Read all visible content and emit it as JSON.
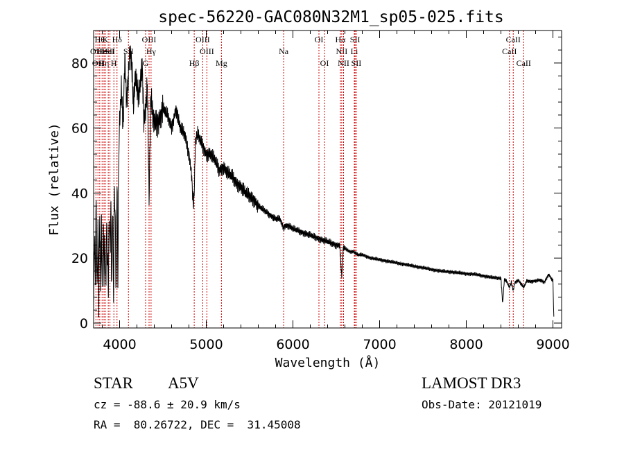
{
  "chart_data": {
    "type": "line",
    "title": "spec-56220-GAC080N32M1_sp05-025.fits",
    "xlabel": "Wavelength (Å)",
    "ylabel": "Flux (relative)",
    "xlim": [
      3700,
      9100
    ],
    "ylim": [
      -1.5,
      90
    ],
    "xticks": [
      4000,
      5000,
      6000,
      7000,
      8000,
      9000
    ],
    "yticks": [
      0,
      20,
      40,
      60,
      80
    ],
    "series": [
      {
        "name": "flux",
        "x": [
          3700,
          3710,
          3720,
          3730,
          3740,
          3750,
          3760,
          3770,
          3780,
          3790,
          3800,
          3810,
          3820,
          3830,
          3840,
          3850,
          3860,
          3870,
          3880,
          3890,
          3900,
          3910,
          3920,
          3930,
          3940,
          3950,
          3960,
          3970,
          3980,
          3990,
          4000,
          4020,
          4040,
          4060,
          4080,
          4100,
          4120,
          4140,
          4160,
          4180,
          4200,
          4220,
          4240,
          4260,
          4280,
          4300,
          4320,
          4340,
          4360,
          4380,
          4400,
          4450,
          4500,
          4550,
          4600,
          4650,
          4700,
          4750,
          4800,
          4830,
          4850,
          4861,
          4875,
          4900,
          4950,
          5000,
          5050,
          5100,
          5150,
          5200,
          5250,
          5300,
          5350,
          5400,
          5450,
          5500,
          5550,
          5600,
          5650,
          5700,
          5750,
          5800,
          5850,
          5893,
          5900,
          5950,
          6000,
          6100,
          6200,
          6300,
          6400,
          6500,
          6540,
          6563,
          6580,
          6600,
          6650,
          6700,
          6750,
          6800,
          6900,
          7000,
          7100,
          7200,
          7300,
          7400,
          7500,
          7600,
          7700,
          7800,
          7900,
          8000,
          8100,
          8200,
          8300,
          8400,
          8420,
          8440,
          8460,
          8498,
          8520,
          8542,
          8560,
          8600,
          8662,
          8700,
          8750,
          8800,
          8850,
          8900,
          8950,
          9000,
          9010
        ],
        "y": [
          2,
          28,
          12,
          38,
          8,
          30,
          6,
          34,
          12,
          28,
          10,
          32,
          14,
          26,
          10,
          30,
          20,
          12,
          34,
          22,
          36,
          10,
          38,
          8,
          42,
          30,
          8,
          46,
          12,
          52,
          62,
          72,
          60,
          82,
          68,
          76,
          84,
          80,
          66,
          76,
          72,
          70,
          74,
          80,
          62,
          66,
          74,
          38,
          70,
          64,
          62,
          62,
          66,
          64,
          60,
          66,
          60,
          58,
          52,
          46,
          36,
          40,
          56,
          58,
          55,
          52,
          52,
          50,
          47,
          48,
          46,
          45,
          43,
          42,
          40,
          39,
          38,
          36,
          35,
          34,
          33,
          32,
          32,
          29,
          30,
          30,
          29,
          28,
          27,
          26,
          25,
          24,
          24,
          14,
          23,
          23,
          22,
          22,
          21,
          21,
          20,
          19.5,
          19,
          18.5,
          18,
          17.5,
          17,
          16.5,
          16,
          15.8,
          15.5,
          15.2,
          15,
          14.5,
          14,
          13.8,
          6,
          13.5,
          13,
          11,
          12.5,
          10,
          12.5,
          13.2,
          11,
          13,
          12.8,
          13,
          13.2,
          12.5,
          15,
          13,
          2
        ]
      }
    ],
    "lines": [
      {
        "w": 3727,
        "t": "OII",
        "row": 2
      },
      {
        "w": 3750,
        "t": "OII",
        "row": 3
      },
      {
        "w": 3771,
        "t": "Hθ",
        "row": 1
      },
      {
        "w": 3798,
        "t": "He",
        "row": 2
      },
      {
        "w": 3820,
        "t": "Hη",
        "row": 3
      },
      {
        "w": 3835,
        "t": "K",
        "row": 1
      },
      {
        "w": 3869,
        "t": "HeI",
        "row": 2
      },
      {
        "w": 3889,
        "t": "SII",
        "row": 2
      },
      {
        "w": 3934,
        "t": "H",
        "row": 3
      },
      {
        "w": 3970,
        "t": "Hδ",
        "row": 1
      },
      {
        "w": 4102,
        "t": "SII",
        "row": 2
      },
      {
        "w": 4300,
        "t": "G",
        "row": 3
      },
      {
        "w": 4340,
        "t": "OIII",
        "row": 1
      },
      {
        "w": 4363,
        "t": "Hγ",
        "row": 2
      },
      {
        "w": 4861,
        "t": "Hβ",
        "row": 3
      },
      {
        "w": 4959,
        "t": "OIII",
        "row": 1
      },
      {
        "w": 5007,
        "t": "OIII",
        "row": 2
      },
      {
        "w": 5175,
        "t": "Mg",
        "row": 3
      },
      {
        "w": 5893,
        "t": "Na",
        "row": 2
      },
      {
        "w": 6300,
        "t": "OI",
        "row": 1
      },
      {
        "w": 6364,
        "t": "OI",
        "row": 3
      },
      {
        "w": 6548,
        "t": "Hα",
        "row": 1
      },
      {
        "w": 6563,
        "t": "NII",
        "row": 2
      },
      {
        "w": 6584,
        "t": "NII",
        "row": 3
      },
      {
        "w": 6708,
        "t": "Li",
        "row": 2
      },
      {
        "w": 6717,
        "t": "SII",
        "row": 1
      },
      {
        "w": 6731,
        "t": "SII",
        "row": 3
      },
      {
        "w": 8498,
        "t": "CaII",
        "row": 2
      },
      {
        "w": 8542,
        "t": "CaII",
        "row": 1
      },
      {
        "w": 8662,
        "t": "CaII",
        "row": 3
      }
    ],
    "colors": {
      "line": "#000000",
      "marker": "#cc0000",
      "axis": "#000000"
    }
  },
  "info": {
    "class": "STAR",
    "subclass": "A5V",
    "survey": "LAMOST DR3",
    "cz": "cz = -88.6 ± 20.9 km/s",
    "obs_date": "Obs-Date: 20121019",
    "coords": "RA =  80.26722, DEC =  31.45008"
  }
}
